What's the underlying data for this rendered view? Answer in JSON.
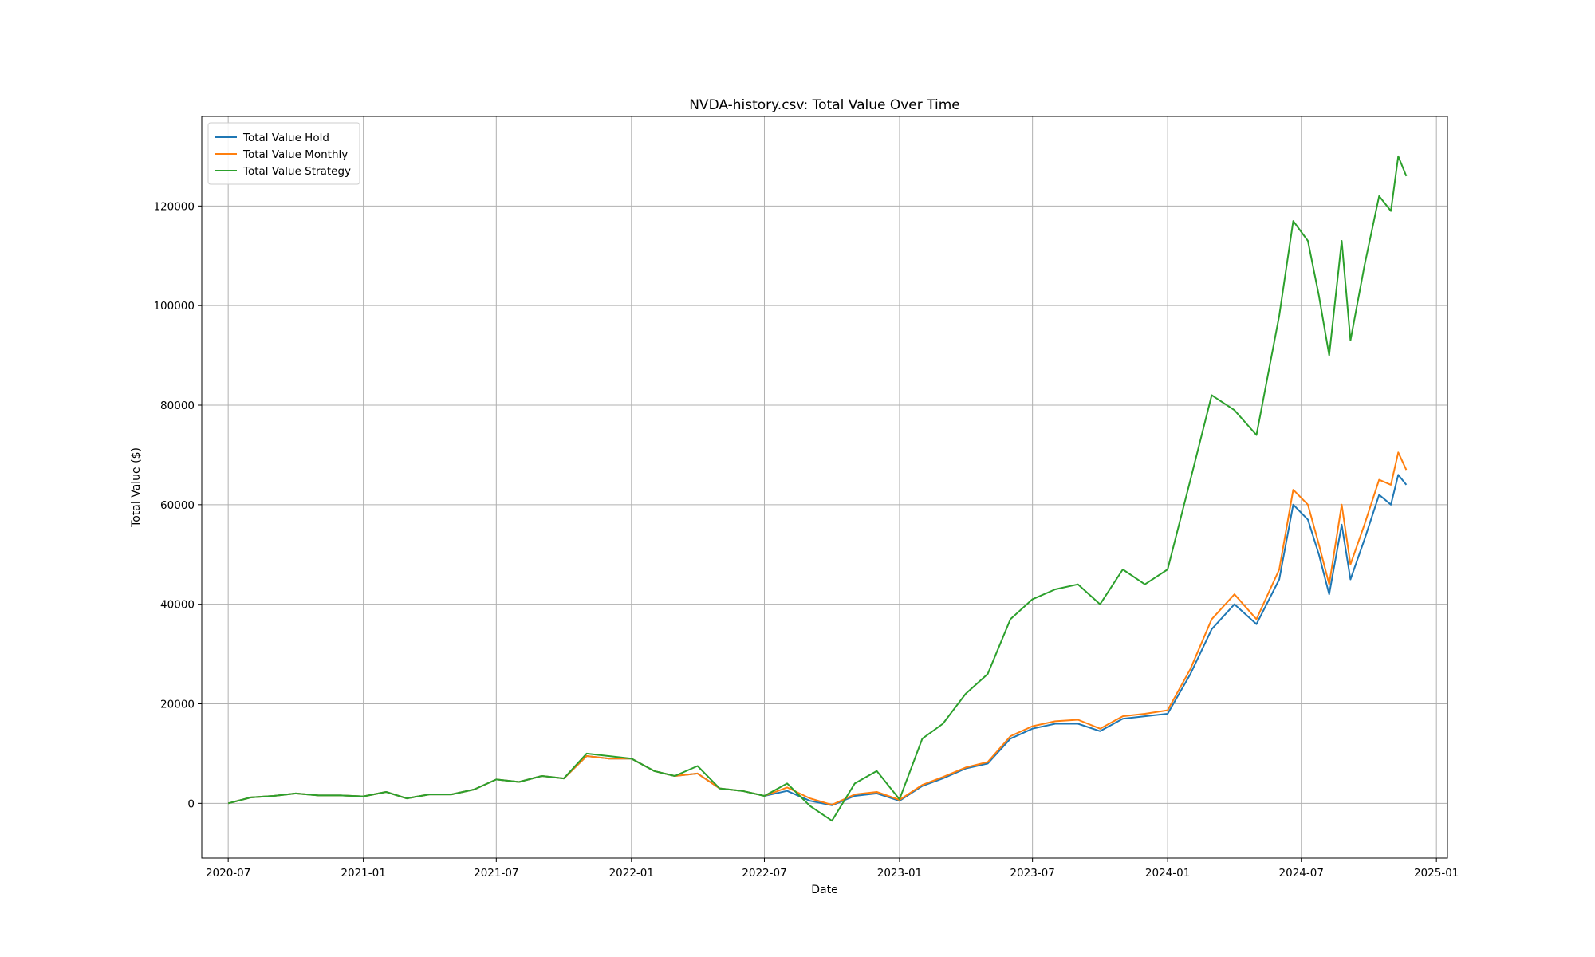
{
  "chart_data": {
    "type": "line",
    "title": "NVDA-history.csv: Total Value Over Time",
    "xlabel": "Date",
    "ylabel": "Total Value ($)",
    "xlim": [
      "2020-05-26",
      "2025-01-16"
    ],
    "ylim": [
      -11000,
      138000
    ],
    "x_ticks": [
      "2020-07",
      "2021-01",
      "2021-07",
      "2022-01",
      "2022-07",
      "2023-01",
      "2023-07",
      "2024-01",
      "2024-07",
      "2025-01"
    ],
    "y_ticks": [
      0,
      20000,
      40000,
      60000,
      80000,
      100000,
      120000
    ],
    "grid": true,
    "legend_position": "upper left",
    "series": [
      {
        "name": "Total Value Hold",
        "color": "#1f77b4",
        "points": [
          [
            "2020-07-01",
            0
          ],
          [
            "2020-08-01",
            1200
          ],
          [
            "2020-09-01",
            1500
          ],
          [
            "2020-10-01",
            2000
          ],
          [
            "2020-11-01",
            1600
          ],
          [
            "2020-12-01",
            1600
          ],
          [
            "2021-01-01",
            1400
          ],
          [
            "2021-02-01",
            2300
          ],
          [
            "2021-03-01",
            1000
          ],
          [
            "2021-04-01",
            1800
          ],
          [
            "2021-05-01",
            1800
          ],
          [
            "2021-06-01",
            2800
          ],
          [
            "2021-07-01",
            4800
          ],
          [
            "2021-08-01",
            4300
          ],
          [
            "2021-09-01",
            5500
          ],
          [
            "2021-10-01",
            5000
          ],
          [
            "2021-11-01",
            9500
          ],
          [
            "2021-12-01",
            9000
          ],
          [
            "2022-01-01",
            9000
          ],
          [
            "2022-02-01",
            6500
          ],
          [
            "2022-03-01",
            5500
          ],
          [
            "2022-04-01",
            6000
          ],
          [
            "2022-05-01",
            3000
          ],
          [
            "2022-06-01",
            2500
          ],
          [
            "2022-07-01",
            1500
          ],
          [
            "2022-08-01",
            2500
          ],
          [
            "2022-09-01",
            500
          ],
          [
            "2022-10-01",
            -400
          ],
          [
            "2022-11-01",
            1500
          ],
          [
            "2022-12-01",
            2000
          ],
          [
            "2023-01-01",
            500
          ],
          [
            "2023-02-01",
            3500
          ],
          [
            "2023-03-01",
            5000
          ],
          [
            "2023-04-01",
            7000
          ],
          [
            "2023-05-01",
            8000
          ],
          [
            "2023-06-01",
            13000
          ],
          [
            "2023-07-01",
            15000
          ],
          [
            "2023-08-01",
            16000
          ],
          [
            "2023-09-01",
            16000
          ],
          [
            "2023-10-01",
            14500
          ],
          [
            "2023-11-01",
            17000
          ],
          [
            "2023-12-01",
            17500
          ],
          [
            "2024-01-01",
            18000
          ],
          [
            "2024-02-01",
            26000
          ],
          [
            "2024-03-01",
            35000
          ],
          [
            "2024-04-01",
            40000
          ],
          [
            "2024-05-01",
            36000
          ],
          [
            "2024-06-01",
            45000
          ],
          [
            "2024-06-20",
            60000
          ],
          [
            "2024-07-10",
            57000
          ],
          [
            "2024-07-25",
            50000
          ],
          [
            "2024-08-08",
            42000
          ],
          [
            "2024-08-25",
            56000
          ],
          [
            "2024-09-06",
            45000
          ],
          [
            "2024-09-25",
            53000
          ],
          [
            "2024-10-15",
            62000
          ],
          [
            "2024-10-31",
            60000
          ],
          [
            "2024-11-10",
            66000
          ],
          [
            "2024-11-21",
            64000
          ]
        ]
      },
      {
        "name": "Total Value Monthly",
        "color": "#ff7f0e",
        "points": [
          [
            "2020-07-01",
            0
          ],
          [
            "2020-08-01",
            1200
          ],
          [
            "2020-09-01",
            1500
          ],
          [
            "2020-10-01",
            2000
          ],
          [
            "2020-11-01",
            1600
          ],
          [
            "2020-12-01",
            1600
          ],
          [
            "2021-01-01",
            1400
          ],
          [
            "2021-02-01",
            2300
          ],
          [
            "2021-03-01",
            1000
          ],
          [
            "2021-04-01",
            1800
          ],
          [
            "2021-05-01",
            1800
          ],
          [
            "2021-06-01",
            2800
          ],
          [
            "2021-07-01",
            4800
          ],
          [
            "2021-08-01",
            4300
          ],
          [
            "2021-09-01",
            5500
          ],
          [
            "2021-10-01",
            5000
          ],
          [
            "2021-11-01",
            9500
          ],
          [
            "2021-12-01",
            9000
          ],
          [
            "2022-01-01",
            9000
          ],
          [
            "2022-02-01",
            6500
          ],
          [
            "2022-03-01",
            5500
          ],
          [
            "2022-04-01",
            6000
          ],
          [
            "2022-05-01",
            3000
          ],
          [
            "2022-06-01",
            2500
          ],
          [
            "2022-07-01",
            1500
          ],
          [
            "2022-08-01",
            3200
          ],
          [
            "2022-09-01",
            1000
          ],
          [
            "2022-10-01",
            -300
          ],
          [
            "2022-11-01",
            1800
          ],
          [
            "2022-12-01",
            2300
          ],
          [
            "2023-01-01",
            700
          ],
          [
            "2023-02-01",
            3700
          ],
          [
            "2023-03-01",
            5300
          ],
          [
            "2023-04-01",
            7200
          ],
          [
            "2023-05-01",
            8300
          ],
          [
            "2023-06-01",
            13500
          ],
          [
            "2023-07-01",
            15500
          ],
          [
            "2023-08-01",
            16500
          ],
          [
            "2023-09-01",
            16800
          ],
          [
            "2023-10-01",
            15000
          ],
          [
            "2023-11-01",
            17500
          ],
          [
            "2023-12-01",
            18000
          ],
          [
            "2024-01-01",
            18700
          ],
          [
            "2024-02-01",
            27000
          ],
          [
            "2024-03-01",
            37000
          ],
          [
            "2024-04-01",
            42000
          ],
          [
            "2024-05-01",
            37000
          ],
          [
            "2024-06-01",
            47000
          ],
          [
            "2024-06-20",
            63000
          ],
          [
            "2024-07-10",
            60000
          ],
          [
            "2024-07-25",
            52000
          ],
          [
            "2024-08-08",
            44000
          ],
          [
            "2024-08-25",
            60000
          ],
          [
            "2024-09-06",
            48000
          ],
          [
            "2024-09-25",
            56000
          ],
          [
            "2024-10-15",
            65000
          ],
          [
            "2024-10-31",
            64000
          ],
          [
            "2024-11-10",
            70500
          ],
          [
            "2024-11-21",
            67000
          ]
        ]
      },
      {
        "name": "Total Value Strategy",
        "color": "#2ca02c",
        "points": [
          [
            "2020-07-01",
            0
          ],
          [
            "2020-08-01",
            1200
          ],
          [
            "2020-09-01",
            1500
          ],
          [
            "2020-10-01",
            2000
          ],
          [
            "2020-11-01",
            1600
          ],
          [
            "2020-12-01",
            1600
          ],
          [
            "2021-01-01",
            1400
          ],
          [
            "2021-02-01",
            2300
          ],
          [
            "2021-03-01",
            1000
          ],
          [
            "2021-04-01",
            1800
          ],
          [
            "2021-05-01",
            1800
          ],
          [
            "2021-06-01",
            2800
          ],
          [
            "2021-07-01",
            4800
          ],
          [
            "2021-08-01",
            4300
          ],
          [
            "2021-09-01",
            5500
          ],
          [
            "2021-10-01",
            5000
          ],
          [
            "2021-11-01",
            10000
          ],
          [
            "2021-12-01",
            9500
          ],
          [
            "2022-01-01",
            9000
          ],
          [
            "2022-02-01",
            6500
          ],
          [
            "2022-03-01",
            5500
          ],
          [
            "2022-04-01",
            7500
          ],
          [
            "2022-05-01",
            3000
          ],
          [
            "2022-06-01",
            2500
          ],
          [
            "2022-07-01",
            1500
          ],
          [
            "2022-08-01",
            4000
          ],
          [
            "2022-09-01",
            -500
          ],
          [
            "2022-10-01",
            -3500
          ],
          [
            "2022-11-01",
            4000
          ],
          [
            "2022-12-01",
            6500
          ],
          [
            "2023-01-01",
            800
          ],
          [
            "2023-02-01",
            13000
          ],
          [
            "2023-03-01",
            16000
          ],
          [
            "2023-04-01",
            22000
          ],
          [
            "2023-05-01",
            26000
          ],
          [
            "2023-06-01",
            37000
          ],
          [
            "2023-07-01",
            41000
          ],
          [
            "2023-08-01",
            43000
          ],
          [
            "2023-09-01",
            44000
          ],
          [
            "2023-10-01",
            40000
          ],
          [
            "2023-11-01",
            47000
          ],
          [
            "2023-12-01",
            44000
          ],
          [
            "2024-01-01",
            47000
          ],
          [
            "2024-02-01",
            65000
          ],
          [
            "2024-03-01",
            82000
          ],
          [
            "2024-04-01",
            79000
          ],
          [
            "2024-05-01",
            74000
          ],
          [
            "2024-06-01",
            98000
          ],
          [
            "2024-06-20",
            117000
          ],
          [
            "2024-07-10",
            113000
          ],
          [
            "2024-07-25",
            102000
          ],
          [
            "2024-08-08",
            90000
          ],
          [
            "2024-08-25",
            113000
          ],
          [
            "2024-09-06",
            93000
          ],
          [
            "2024-09-25",
            108000
          ],
          [
            "2024-10-15",
            122000
          ],
          [
            "2024-10-31",
            119000
          ],
          [
            "2024-11-10",
            130000
          ],
          [
            "2024-11-21",
            126000
          ]
        ]
      }
    ]
  }
}
